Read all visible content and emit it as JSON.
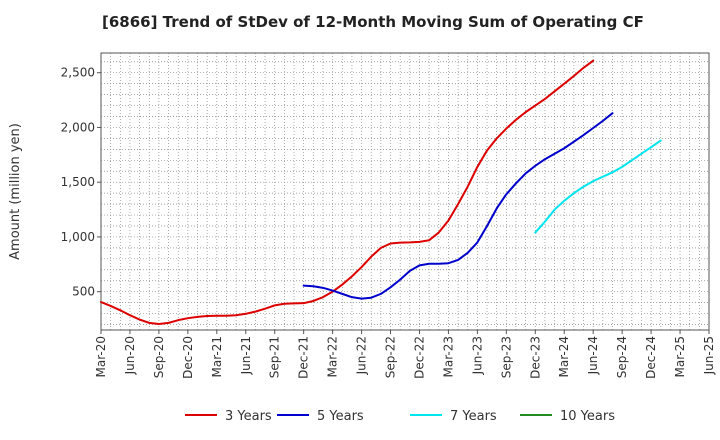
{
  "title": "[6866]  Trend of StDev of 12-Month Moving Sum of Operating CF",
  "chart_data": {
    "type": "line",
    "title": "[6866]  Trend of StDev of 12-Month Moving Sum of Operating CF",
    "xlabel": "",
    "ylabel": "Amount (million yen)",
    "x_ticks": [
      "Mar-20",
      "Jun-20",
      "Sep-20",
      "Dec-20",
      "Mar-21",
      "Jun-21",
      "Sep-21",
      "Dec-21",
      "Mar-22",
      "Jun-22",
      "Sep-22",
      "Dec-22",
      "Mar-23",
      "Jun-23",
      "Sep-23",
      "Dec-23",
      "Mar-24",
      "Jun-24",
      "Sep-24",
      "Dec-24",
      "Mar-25",
      "Jun-25"
    ],
    "y_ticks": [
      500,
      1000,
      1500,
      2000,
      2500
    ],
    "y_tick_labels": [
      "500",
      "1,000",
      "1,500",
      "2,000",
      "2,500"
    ],
    "ylim": [
      150,
      2680
    ],
    "grid": true,
    "legend_position": "bottom",
    "series": [
      {
        "name": "3 Years",
        "color": "#dd0000",
        "start": "Mar-20",
        "values": [
          405,
          370,
          330,
          285,
          245,
          215,
          205,
          215,
          240,
          258,
          270,
          278,
          280,
          280,
          285,
          298,
          318,
          345,
          375,
          390,
          393,
          395,
          415,
          450,
          500,
          565,
          640,
          725,
          820,
          900,
          940,
          948,
          950,
          955,
          970,
          1040,
          1150,
          1300,
          1460,
          1640,
          1790,
          1900,
          1990,
          2070,
          2140,
          2200,
          2260,
          2330,
          2400,
          2470,
          2545,
          2610
        ]
      },
      {
        "name": "5 Years",
        "color": "#0000cc",
        "start": "Dec-21",
        "values": [
          555,
          550,
          535,
          510,
          480,
          450,
          437,
          445,
          480,
          540,
          610,
          690,
          740,
          755,
          755,
          760,
          790,
          855,
          950,
          1100,
          1260,
          1390,
          1490,
          1580,
          1650,
          1710,
          1760,
          1810,
          1870,
          1930,
          1995,
          2060,
          2130
        ]
      },
      {
        "name": "7 Years",
        "color": "#00e5ee",
        "start": "Dec-23",
        "values": [
          1040,
          1140,
          1250,
          1330,
          1400,
          1460,
          1510,
          1550,
          1590,
          1640,
          1700,
          1760,
          1820,
          1880
        ]
      },
      {
        "name": "10 Years",
        "color": "#228b22",
        "start": "Mar-20",
        "values": []
      }
    ]
  }
}
